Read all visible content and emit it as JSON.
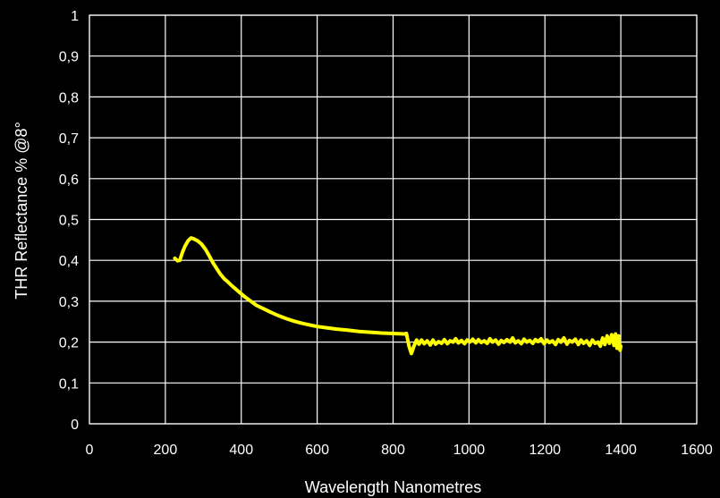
{
  "colors": {
    "background": "#000000",
    "grid": "#ffffff",
    "text": "#ffffff",
    "series_line": "#ffff00"
  },
  "chart_data": {
    "type": "line",
    "title": "",
    "xlabel": "Wavelength Nanometres",
    "ylabel": "THR Reflectance  % @8°",
    "xlim": [
      0,
      1600
    ],
    "ylim": [
      0,
      1
    ],
    "grid": true,
    "legend": "none",
    "x_ticks": [
      0,
      200,
      400,
      600,
      800,
      1000,
      1200,
      1400,
      1600
    ],
    "x_tick_labels": [
      "0",
      "200",
      "400",
      "600",
      "800",
      "1000",
      "1200",
      "1400",
      "1600"
    ],
    "y_ticks": [
      0,
      0.1,
      0.2,
      0.3,
      0.4,
      0.5,
      0.6,
      0.7,
      0.8,
      0.9,
      1
    ],
    "y_tick_labels": [
      "0",
      "0,1",
      "0,2",
      "0,3",
      "0,4",
      "0,5",
      "0,6",
      "0,7",
      "0,8",
      "0,9",
      "1"
    ],
    "series": [
      {
        "color": "#ffff00",
        "points": [
          [
            225,
            0.405
          ],
          [
            232,
            0.399
          ],
          [
            238,
            0.4
          ],
          [
            245,
            0.42
          ],
          [
            252,
            0.435
          ],
          [
            260,
            0.448
          ],
          [
            268,
            0.455
          ],
          [
            276,
            0.452
          ],
          [
            285,
            0.448
          ],
          [
            295,
            0.44
          ],
          [
            305,
            0.428
          ],
          [
            315,
            0.412
          ],
          [
            325,
            0.395
          ],
          [
            335,
            0.38
          ],
          [
            345,
            0.366
          ],
          [
            355,
            0.355
          ],
          [
            365,
            0.347
          ],
          [
            375,
            0.338
          ],
          [
            385,
            0.33
          ],
          [
            395,
            0.322
          ],
          [
            410,
            0.31
          ],
          [
            425,
            0.3
          ],
          [
            440,
            0.29
          ],
          [
            460,
            0.281
          ],
          [
            480,
            0.272
          ],
          [
            500,
            0.264
          ],
          [
            520,
            0.257
          ],
          [
            540,
            0.251
          ],
          [
            560,
            0.246
          ],
          [
            580,
            0.242
          ],
          [
            600,
            0.238
          ],
          [
            625,
            0.235
          ],
          [
            650,
            0.232
          ],
          [
            680,
            0.229
          ],
          [
            710,
            0.226
          ],
          [
            740,
            0.224
          ],
          [
            770,
            0.222
          ],
          [
            800,
            0.221
          ],
          [
            830,
            0.22
          ],
          [
            835,
            0.221
          ],
          [
            842,
            0.19
          ],
          [
            848,
            0.172
          ],
          [
            855,
            0.19
          ],
          [
            862,
            0.205
          ],
          [
            868,
            0.195
          ],
          [
            875,
            0.205
          ],
          [
            882,
            0.196
          ],
          [
            890,
            0.203
          ],
          [
            898,
            0.193
          ],
          [
            905,
            0.205
          ],
          [
            912,
            0.195
          ],
          [
            920,
            0.201
          ],
          [
            928,
            0.197
          ],
          [
            935,
            0.206
          ],
          [
            943,
            0.196
          ],
          [
            950,
            0.203
          ],
          [
            958,
            0.2
          ],
          [
            965,
            0.208
          ],
          [
            972,
            0.198
          ],
          [
            980,
            0.204
          ],
          [
            988,
            0.196
          ],
          [
            995,
            0.205
          ],
          [
            1002,
            0.2
          ],
          [
            1010,
            0.207
          ],
          [
            1018,
            0.198
          ],
          [
            1025,
            0.206
          ],
          [
            1032,
            0.199
          ],
          [
            1040,
            0.203
          ],
          [
            1048,
            0.197
          ],
          [
            1055,
            0.208
          ],
          [
            1062,
            0.2
          ],
          [
            1070,
            0.205
          ],
          [
            1078,
            0.195
          ],
          [
            1085,
            0.204
          ],
          [
            1092,
            0.199
          ],
          [
            1100,
            0.206
          ],
          [
            1108,
            0.2
          ],
          [
            1115,
            0.21
          ],
          [
            1122,
            0.198
          ],
          [
            1130,
            0.203
          ],
          [
            1138,
            0.196
          ],
          [
            1145,
            0.207
          ],
          [
            1152,
            0.2
          ],
          [
            1160,
            0.204
          ],
          [
            1168,
            0.197
          ],
          [
            1175,
            0.206
          ],
          [
            1182,
            0.201
          ],
          [
            1190,
            0.208
          ],
          [
            1198,
            0.196
          ],
          [
            1205,
            0.205
          ],
          [
            1212,
            0.199
          ],
          [
            1220,
            0.203
          ],
          [
            1228,
            0.194
          ],
          [
            1235,
            0.206
          ],
          [
            1242,
            0.2
          ],
          [
            1250,
            0.21
          ],
          [
            1258,
            0.195
          ],
          [
            1265,
            0.204
          ],
          [
            1272,
            0.2
          ],
          [
            1280,
            0.207
          ],
          [
            1288,
            0.194
          ],
          [
            1295,
            0.205
          ],
          [
            1302,
            0.197
          ],
          [
            1310,
            0.203
          ],
          [
            1318,
            0.192
          ],
          [
            1325,
            0.205
          ],
          [
            1332,
            0.197
          ],
          [
            1340,
            0.2
          ],
          [
            1346,
            0.19
          ],
          [
            1352,
            0.21
          ],
          [
            1358,
            0.194
          ],
          [
            1364,
            0.215
          ],
          [
            1370,
            0.197
          ],
          [
            1376,
            0.218
          ],
          [
            1382,
            0.192
          ],
          [
            1386,
            0.22
          ],
          [
            1390,
            0.185
          ],
          [
            1394,
            0.215
          ],
          [
            1398,
            0.18
          ],
          [
            1400,
            0.19
          ]
        ]
      }
    ]
  }
}
